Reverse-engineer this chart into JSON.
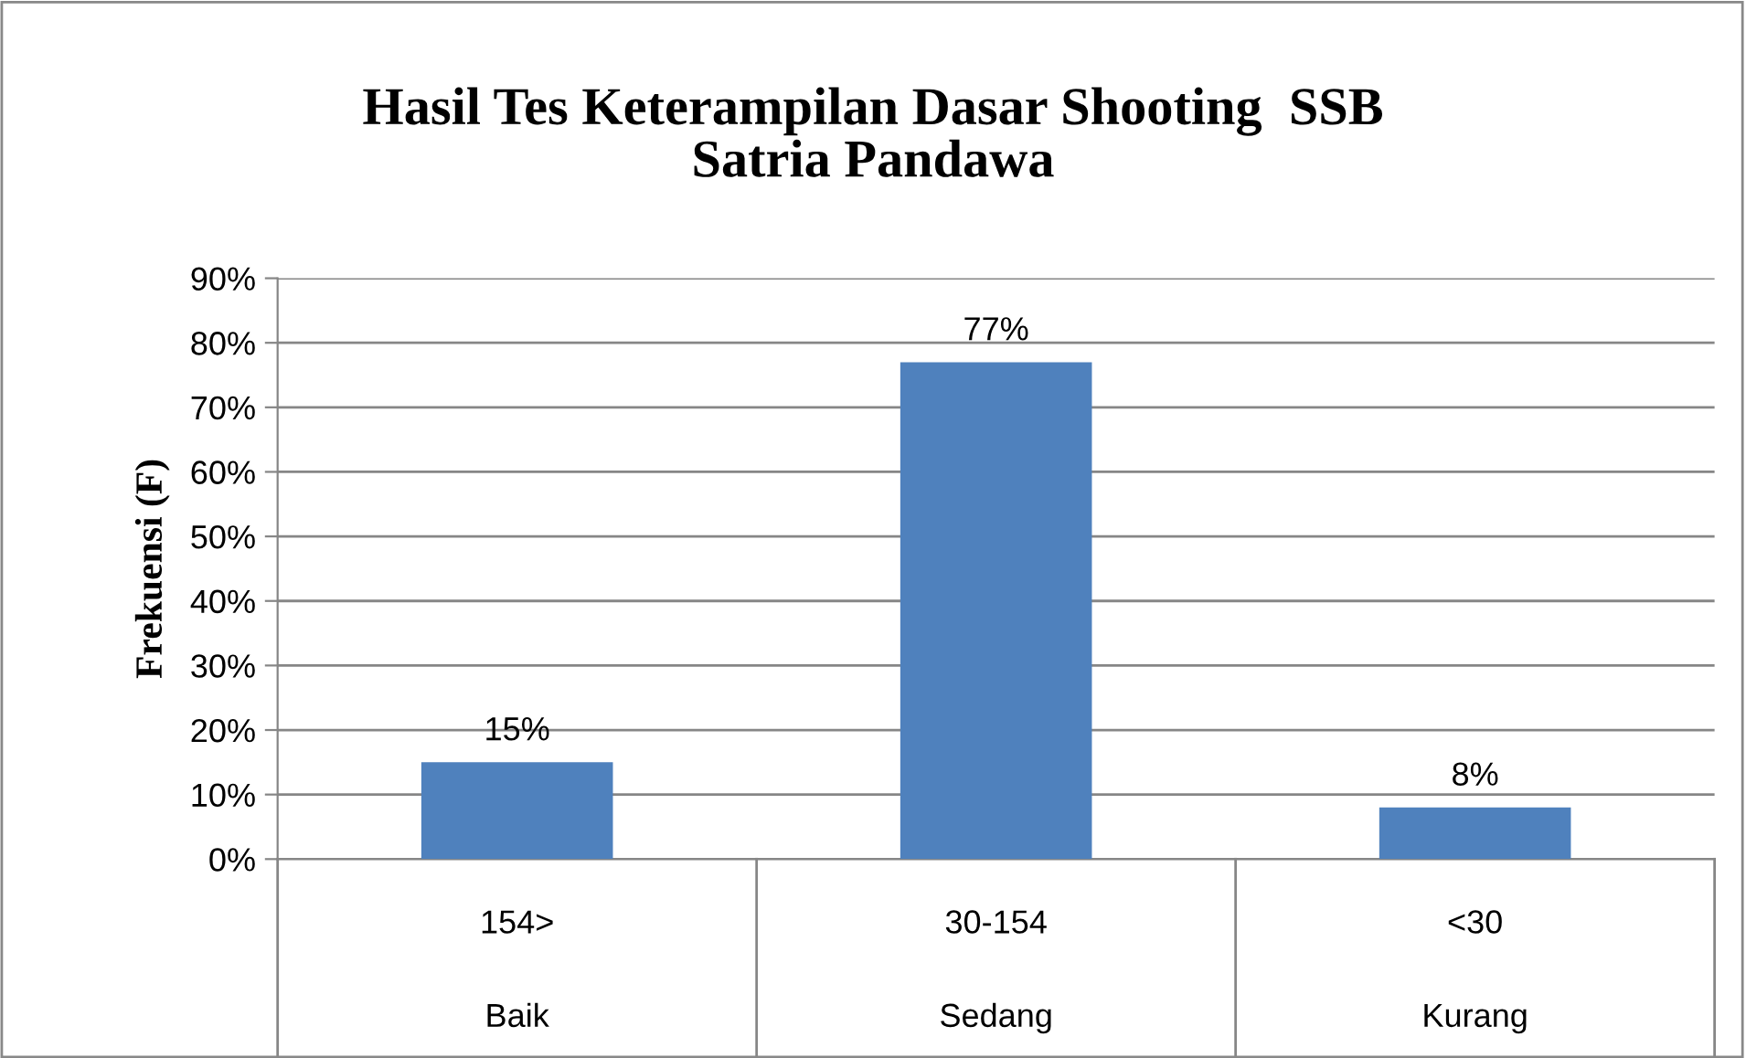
{
  "chart_data": {
    "type": "bar",
    "title": "Hasil Tes Keterampilan Dasar Shooting  SSB\nSatria Pandawa",
    "ylabel": "Frekuensi (F)",
    "categories": [
      "154>\nBaik",
      "30-154\nSedang",
      "<30\nKurang"
    ],
    "values": [
      15,
      77,
      8
    ],
    "color": "#4f81bd",
    "value_labels": [
      "15%",
      "77%",
      "8%"
    ],
    "ylim": [
      0,
      90
    ],
    "yticks": [
      {
        "value": 0,
        "label": "0%"
      },
      {
        "value": 10,
        "label": "10%"
      },
      {
        "value": 20,
        "label": "20%"
      },
      {
        "value": 30,
        "label": "30%"
      },
      {
        "value": 40,
        "label": "40%"
      },
      {
        "value": 50,
        "label": "50%"
      },
      {
        "value": 60,
        "label": "60%"
      },
      {
        "value": 70,
        "label": "70%"
      },
      {
        "value": 80,
        "label": "80%"
      },
      {
        "value": 90,
        "label": "90%"
      }
    ],
    "grid": "y",
    "legend": false
  }
}
